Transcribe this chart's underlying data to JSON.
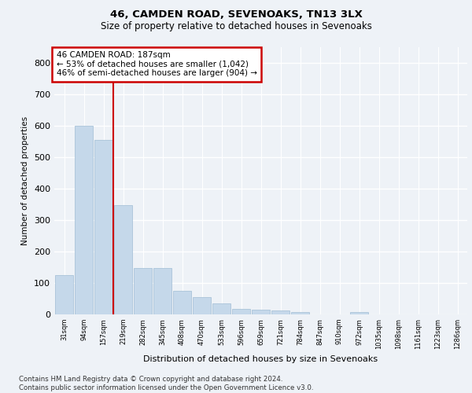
{
  "title1": "46, CAMDEN ROAD, SEVENOAKS, TN13 3LX",
  "title2": "Size of property relative to detached houses in Sevenoaks",
  "xlabel": "Distribution of detached houses by size in Sevenoaks",
  "ylabel": "Number of detached properties",
  "bar_color": "#c5d8ea",
  "bar_edge_color": "#a0bcd4",
  "vline_color": "#cc0000",
  "vline_position": 2.5,
  "annotation_text": "46 CAMDEN ROAD: 187sqm\n← 53% of detached houses are smaller (1,042)\n46% of semi-detached houses are larger (904) →",
  "annotation_box_color": "#ffffff",
  "annotation_box_edge": "#cc0000",
  "categories": [
    "31sqm",
    "94sqm",
    "157sqm",
    "219sqm",
    "282sqm",
    "345sqm",
    "408sqm",
    "470sqm",
    "533sqm",
    "596sqm",
    "659sqm",
    "721sqm",
    "784sqm",
    "847sqm",
    "910sqm",
    "972sqm",
    "1035sqm",
    "1098sqm",
    "1161sqm",
    "1223sqm",
    "1286sqm"
  ],
  "values": [
    125,
    600,
    555,
    348,
    148,
    148,
    75,
    55,
    35,
    18,
    14,
    12,
    8,
    0,
    0,
    8,
    0,
    0,
    0,
    0,
    0
  ],
  "ylim": [
    0,
    850
  ],
  "yticks": [
    0,
    100,
    200,
    300,
    400,
    500,
    600,
    700,
    800
  ],
  "footer": "Contains HM Land Registry data © Crown copyright and database right 2024.\nContains public sector information licensed under the Open Government Licence v3.0.",
  "bg_color": "#eef2f7",
  "plot_bg_color": "#eef2f7",
  "grid_color": "#ffffff"
}
